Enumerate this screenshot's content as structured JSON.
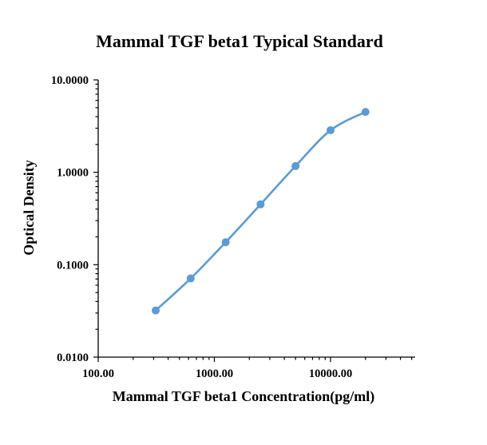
{
  "chart_data": {
    "type": "scatter",
    "title": "Mammal TGF beta1 Typical Standard",
    "xlabel": "Mammal TGF beta1 Concentration(pg/ml)",
    "ylabel": "Optical Density",
    "x_scale": "log",
    "y_scale": "log",
    "xlim": [
      100,
      50000
    ],
    "ylim": [
      0.01,
      10
    ],
    "x_tick_labels": [
      "100.00",
      "1000.00",
      "10000.00"
    ],
    "y_tick_labels": [
      "0.0100",
      "0.1000",
      "1.0000",
      "10.0000"
    ],
    "grid": false,
    "legend": "none",
    "series": [
      {
        "color": "#5b9bd5",
        "line": "smooth",
        "x": [
          312.5,
          625,
          1250,
          2500,
          5000,
          10000,
          20000
        ],
        "y": [
          0.032,
          0.071,
          0.175,
          0.45,
          1.17,
          2.85,
          4.5
        ]
      }
    ]
  }
}
